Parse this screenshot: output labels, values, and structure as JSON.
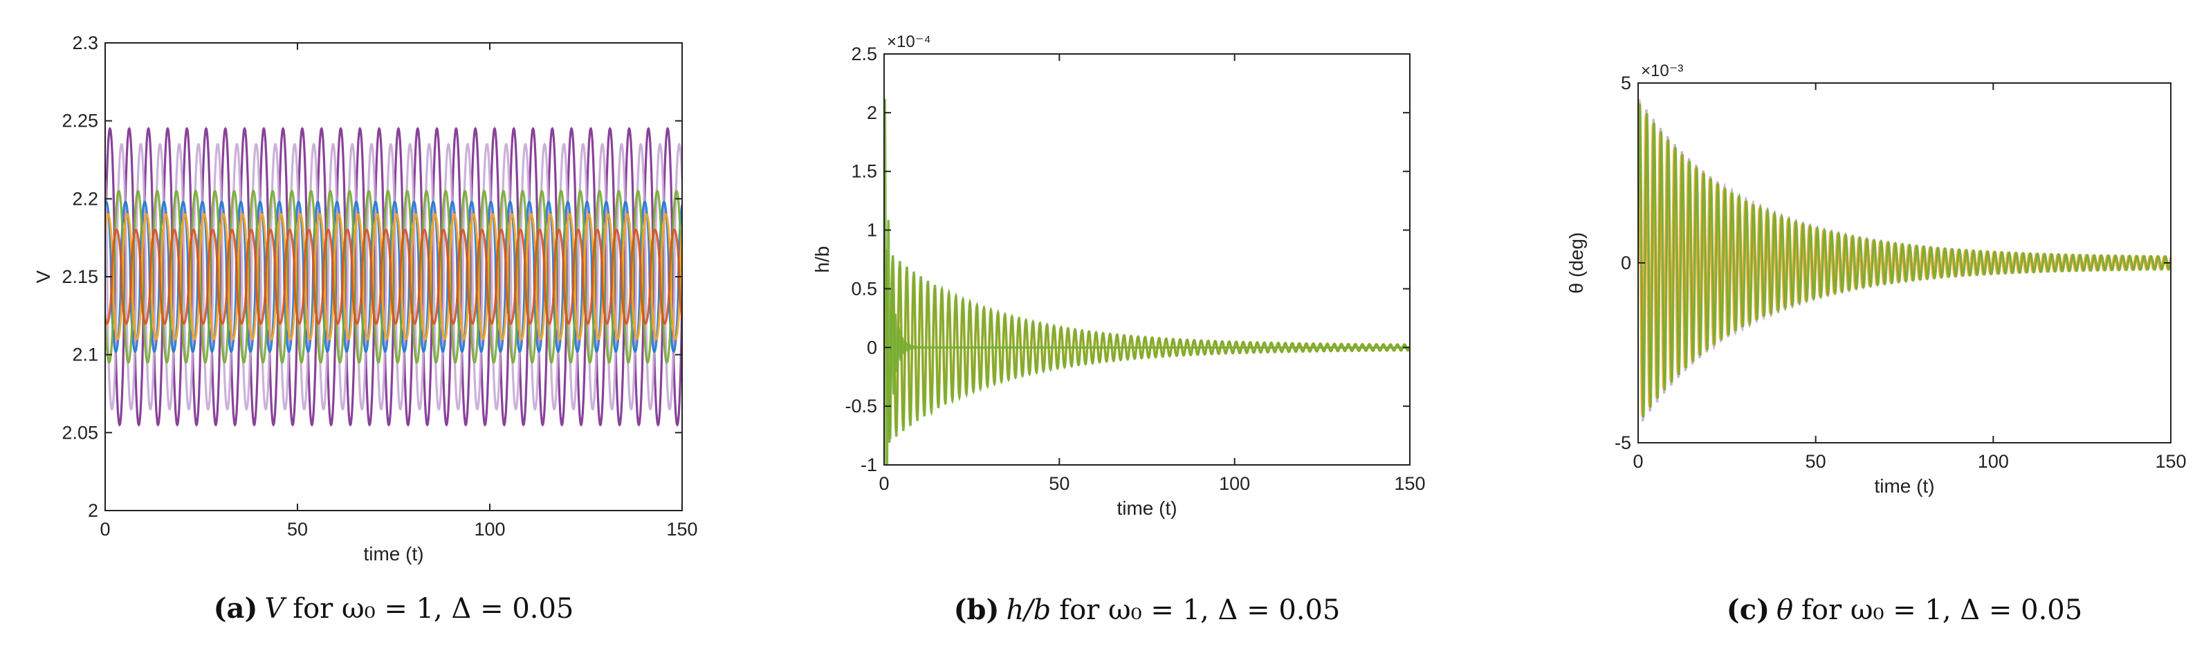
{
  "chart_data": [
    {
      "type": "line",
      "panel_label": "(a)",
      "caption": "V for ω₀ = 1, Δ = 0.05",
      "caption_symbol": "V",
      "caption_params": "for ω₀ = 1, Δ = 0.05",
      "xlabel": "time (t)",
      "ylabel": "V",
      "x_ticks": [
        "0",
        "50",
        "100",
        "150"
      ],
      "y_ticks": [
        "2",
        "2.05",
        "2.1",
        "2.15",
        "2.2",
        "2.25",
        "2.3"
      ],
      "xlim": [
        0,
        150
      ],
      "ylim": [
        2.0,
        2.3
      ],
      "exponent_label": "",
      "series": [
        {
          "color": "#7b2d8e",
          "center": 2.15,
          "amp": [
            0.095,
            0.095
          ],
          "period": 5.0,
          "phase": 0.0
        },
        {
          "color": "#c7a8d6",
          "center": 2.15,
          "amp": [
            0.085,
            0.085
          ],
          "period": 5.0,
          "phase": 2.5
        },
        {
          "color": "#1f77d4",
          "center": 2.15,
          "amp": [
            0.048,
            0.048
          ],
          "period": 5.0,
          "phase": 1.2
        },
        {
          "color": "#77ac30",
          "center": 2.15,
          "amp": [
            0.055,
            0.055
          ],
          "period": 5.0,
          "phase": 3.4
        },
        {
          "color": "#f5a623",
          "center": 2.15,
          "amp": [
            0.04,
            0.04
          ],
          "period": 5.0,
          "phase": 0.6
        },
        {
          "color": "#d95319",
          "center": 2.15,
          "amp": [
            0.03,
            0.03
          ],
          "period": 5.0,
          "phase": 4.1
        }
      ]
    },
    {
      "type": "line",
      "panel_label": "(b)",
      "caption": "h/b for ω₀ = 1, Δ = 0.05",
      "caption_symbol": "h/b",
      "caption_params": "for ω₀ = 1, Δ = 0.05",
      "xlabel": "time (t)",
      "ylabel": "h/b",
      "x_ticks": [
        "0",
        "50",
        "100",
        "150"
      ],
      "y_ticks": [
        "-1",
        "-0.5",
        "0",
        "0.5",
        "1",
        "1.5",
        "2",
        "2.5"
      ],
      "xlim": [
        0,
        150
      ],
      "ylim": [
        -1.0,
        2.5
      ],
      "exponent_label": "×10⁻⁴",
      "series": [
        {
          "color": "#f5a623",
          "center": 0.0,
          "amp": [
            0.8,
            0.02
          ],
          "period": 2.0,
          "phase": 0.3,
          "decay": 30
        },
        {
          "color": "#77ac30",
          "center": 0.0,
          "amp": [
            0.85,
            0.02
          ],
          "period": 2.0,
          "phase": 0.0,
          "decay": 30
        },
        {
          "color": "#77ac30",
          "center": 0.0,
          "amp": [
            2.5,
            0.0
          ],
          "period": 1.0,
          "phase": 0.0,
          "decay": 1.5
        }
      ]
    },
    {
      "type": "line",
      "panel_label": "(c)",
      "caption": "θ for ω₀ = 1, Δ = 0.05",
      "caption_symbol": "θ",
      "caption_params": "for ω₀ = 1, Δ = 0.05",
      "xlabel": "time (t)",
      "ylabel": "θ (deg)",
      "x_ticks": [
        "0",
        "50",
        "100",
        "150"
      ],
      "y_ticks": [
        "-5",
        "0",
        "5"
      ],
      "xlim": [
        0,
        150
      ],
      "ylim": [
        -5,
        5
      ],
      "exponent_label": "×10⁻³",
      "series": [
        {
          "color": "#c7a8d6",
          "center": 0.0,
          "amp": [
            4.6,
            0.15
          ],
          "period": 2.0,
          "phase": 0.5,
          "decay": 30
        },
        {
          "color": "#f5a623",
          "center": 0.0,
          "amp": [
            4.4,
            0.15
          ],
          "period": 2.0,
          "phase": 1.0,
          "decay": 30
        },
        {
          "color": "#77ac30",
          "center": 0.0,
          "amp": [
            4.5,
            0.15
          ],
          "period": 2.0,
          "phase": 0.0,
          "decay": 30
        }
      ]
    }
  ]
}
